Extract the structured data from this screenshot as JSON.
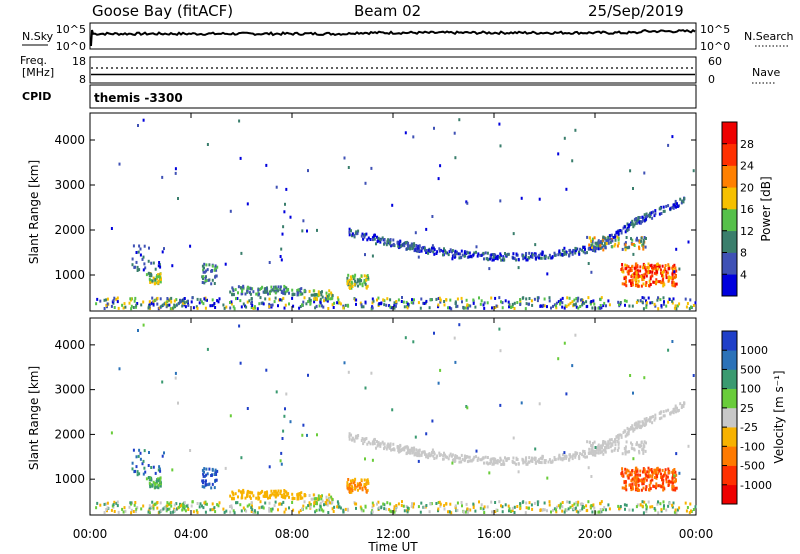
{
  "header": {
    "station": "Goose Bay (fitACF)",
    "beam": "Beam 02",
    "date": "25/Sep/2019"
  },
  "nsky": {
    "label": "N.Sky",
    "y_ticks_left": [
      "10^5",
      "10^0"
    ],
    "y_ticks_right": [
      "10^5",
      "10^0"
    ],
    "right_label": "N.Search"
  },
  "freq": {
    "label_top": "Freq.",
    "label_bottom": "[MHz]",
    "y_ticks_left": [
      "18",
      "8"
    ],
    "y_ticks_right": [
      "60",
      "0"
    ],
    "right_label": "Nave"
  },
  "cpid": {
    "label": "CPID",
    "value": "themis -3300"
  },
  "time_axis": {
    "title": "Time UT",
    "ticks": [
      "00:00",
      "04:00",
      "08:00",
      "12:00",
      "16:00",
      "20:00",
      "00:00"
    ],
    "range_hours": [
      0,
      24
    ]
  },
  "chart_data": [
    {
      "type": "heatmap",
      "parameter": "power",
      "ylabel": "Slant Range [km]",
      "yticks": [
        1000,
        2000,
        3000,
        4000
      ],
      "ylim": [
        200,
        4600
      ],
      "colorbar": {
        "label": "Power [dB]",
        "ticks": [
          "4",
          "8",
          "12",
          "16",
          "20",
          "24",
          "28"
        ],
        "colors": [
          "#0000dd",
          "#3f51b5",
          "#3a7e6c",
          "#56c04a",
          "#f6c000",
          "#ff8000",
          "#ff3000",
          "#ee0000"
        ]
      }
    },
    {
      "type": "heatmap",
      "parameter": "velocity",
      "ylabel": "Slant Range [km]",
      "yticks": [
        1000,
        2000,
        3000,
        4000
      ],
      "ylim": [
        200,
        4600
      ],
      "colorbar": {
        "label": "Velocity [m s⁻¹]",
        "ticks": [
          "1000",
          "500",
          "100",
          "25",
          "-25",
          "-100",
          "-500",
          "-1000"
        ],
        "colors": [
          "#1f3fc8",
          "#2b72b8",
          "#3a9a70",
          "#69cc3a",
          "#c8c8c8",
          "#f7b200",
          "#ff7a00",
          "#ff3000",
          "#ee0000"
        ]
      }
    }
  ]
}
